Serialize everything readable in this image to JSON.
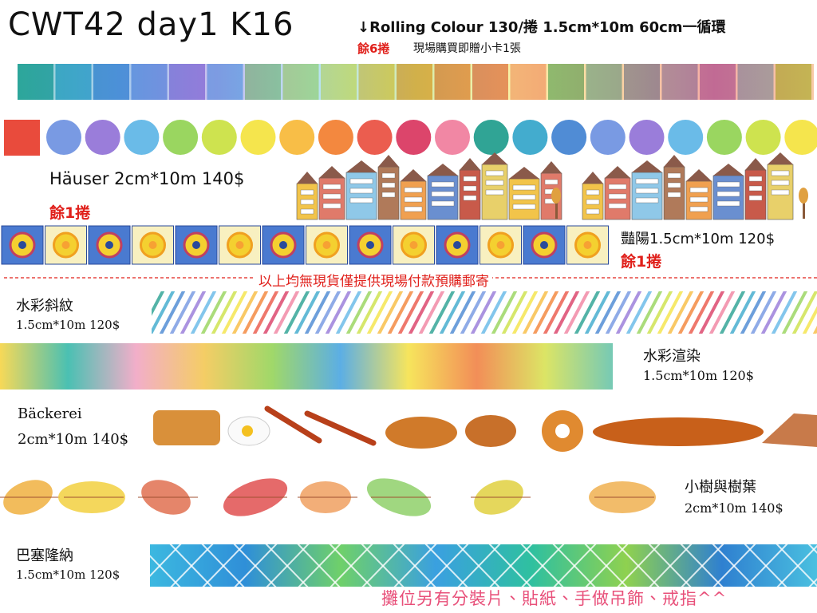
{
  "header": {
    "title": "CWT42 day1 K16",
    "subtitle": "↓Rolling Colour 130/捲 1.5cm*10m 60cm一循環",
    "stock": "餘6捲",
    "bonus": "現場購買即贈小卡1張"
  },
  "products": [
    {
      "name": "Häuser 2cm*10m 140$",
      "stock": "餘1捲"
    },
    {
      "name": "豔陽1.5cm*10m 120$",
      "stock": "餘1捲"
    },
    {
      "name": "水彩斜紋",
      "spec": "1.5cm*10m  120$"
    },
    {
      "name": "水彩渲染",
      "spec": "1.5cm*10m  120$"
    },
    {
      "name": "Bäckerei",
      "spec": "2cm*10m 140$"
    },
    {
      "name": "小樹與樹葉",
      "spec": "2cm*10m  140$"
    },
    {
      "name": "巴塞隆納",
      "spec": "1.5cm*10m  120$"
    }
  ],
  "notice": "以上均無現貨僅提供現場付款預購郵寄",
  "footer": "攤位另有分裝片、貼紙、手做吊飾、戒指^^"
}
